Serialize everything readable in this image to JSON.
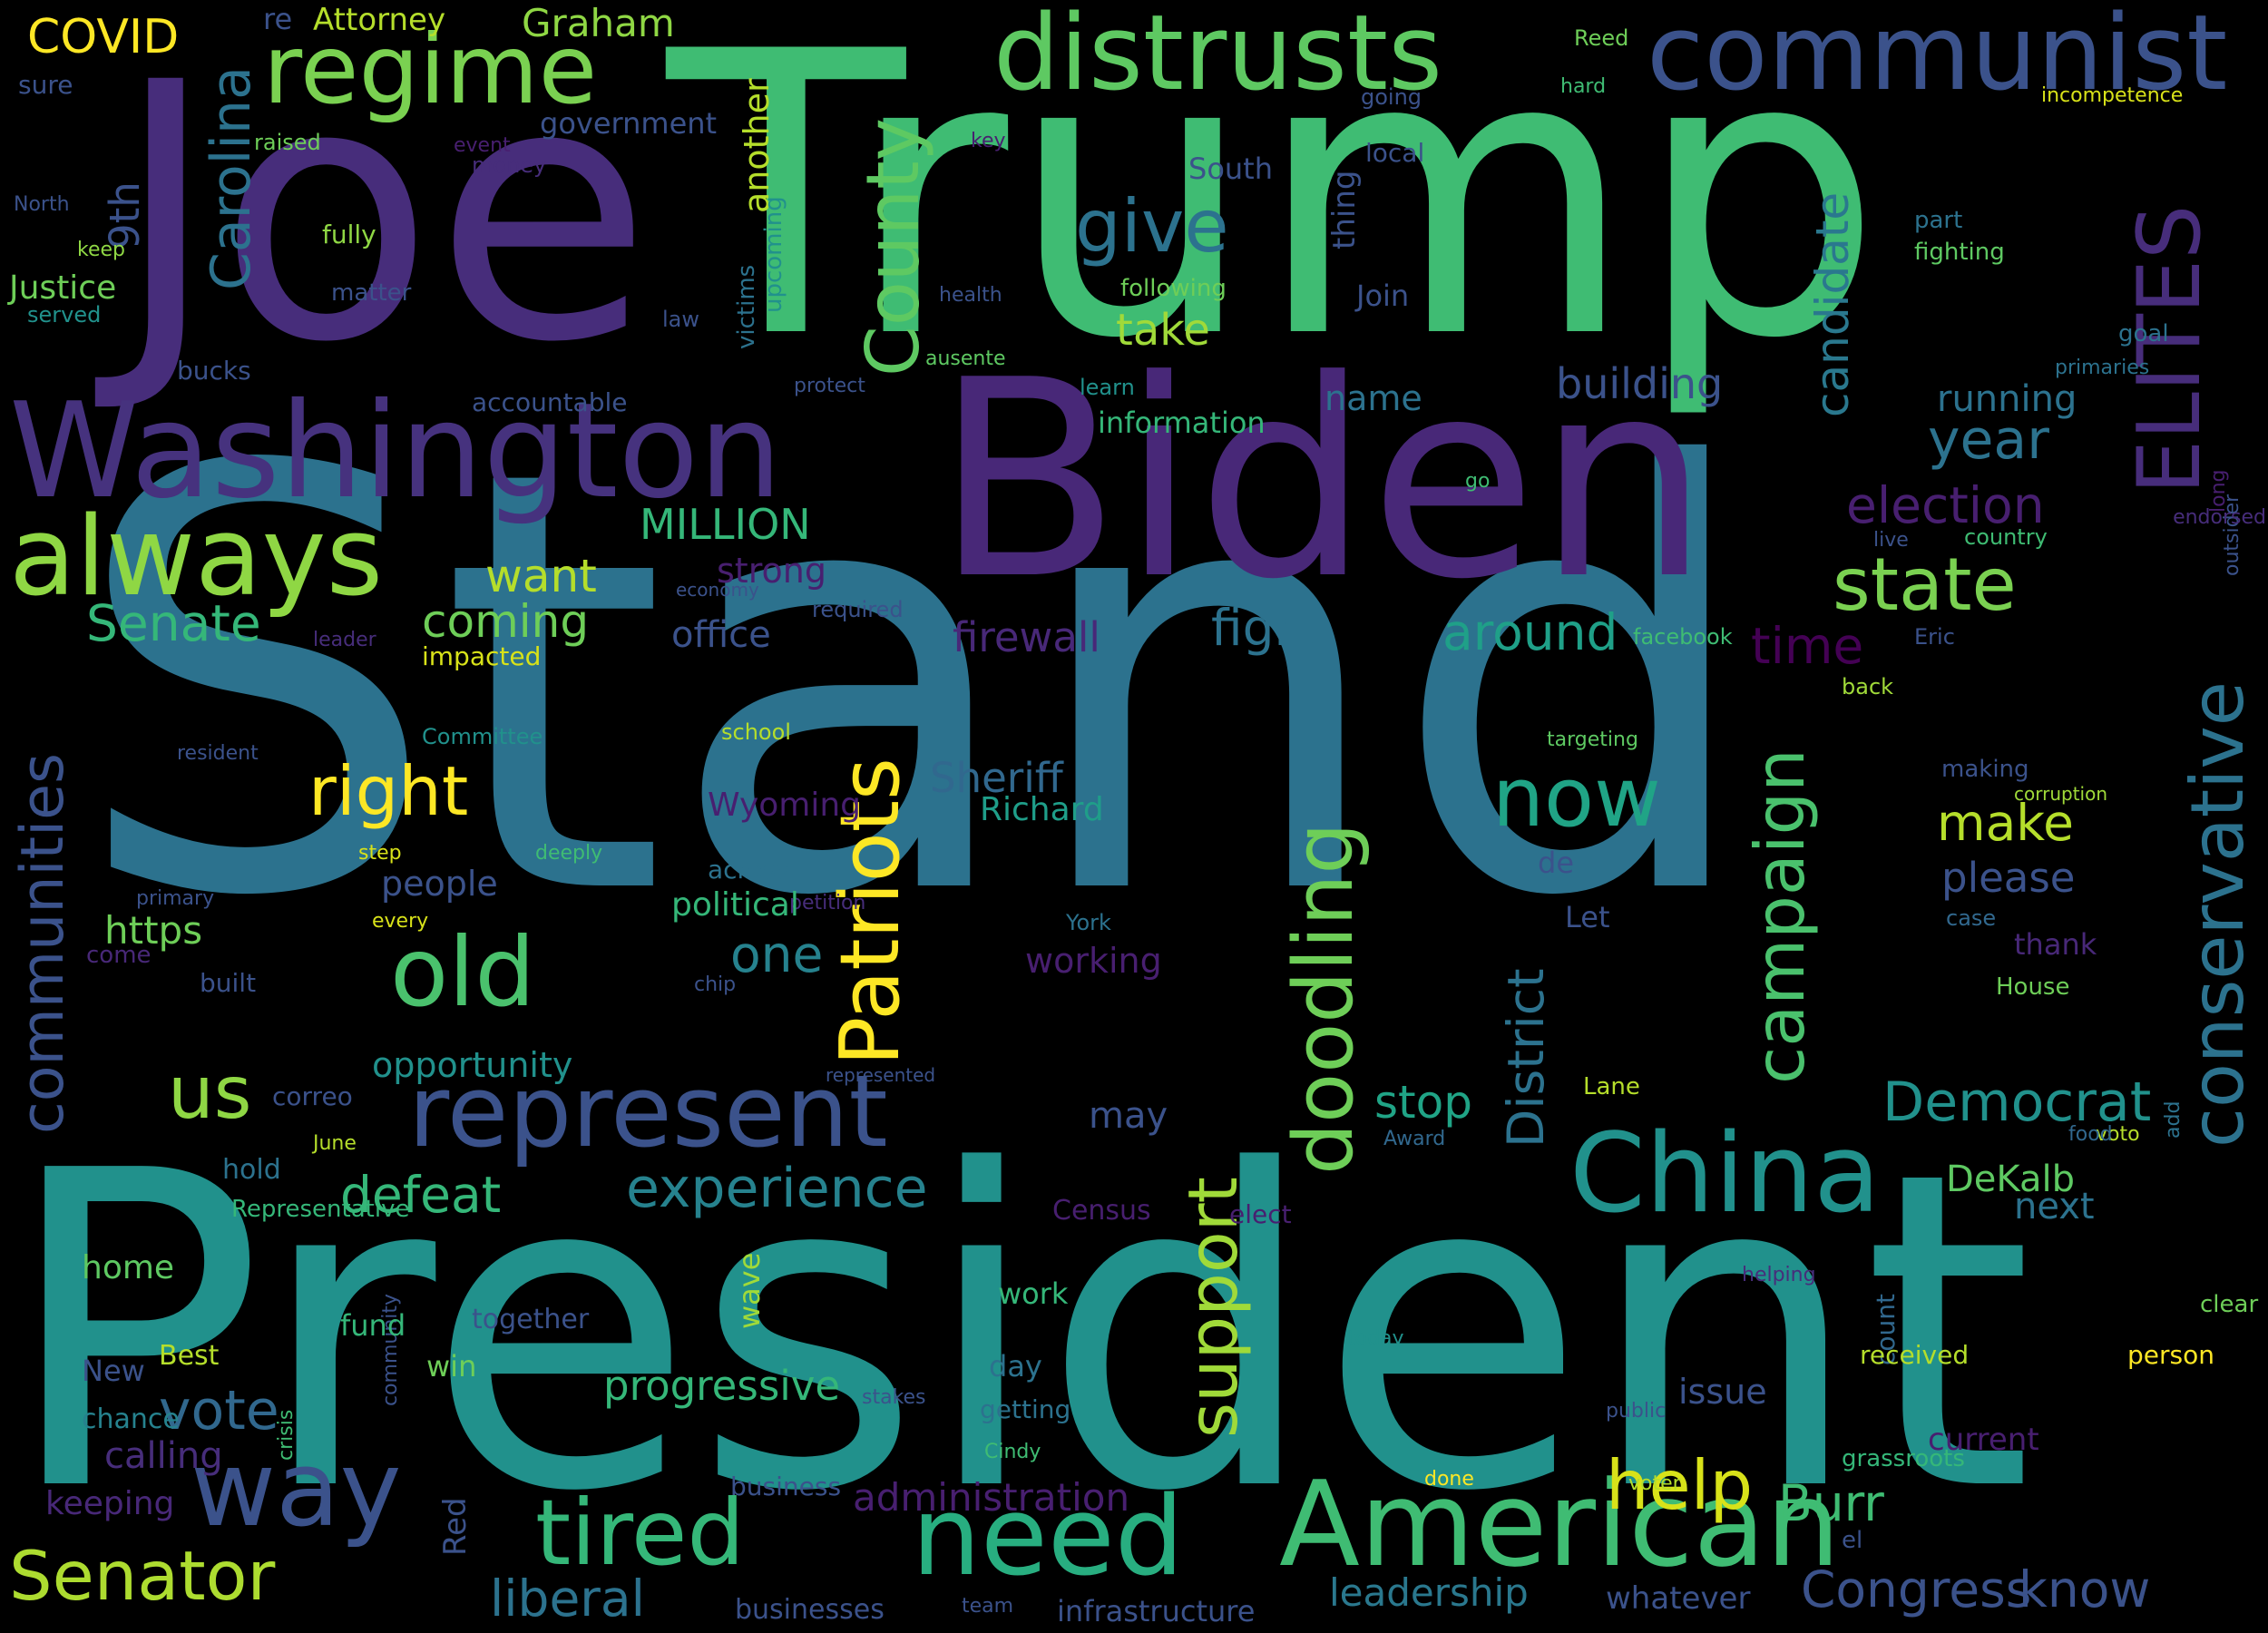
{
  "palette": {
    "background": "#000000",
    "purple_dark": "#440154",
    "purple": "#472d7b",
    "indigo": "#3b528b",
    "blue": "#2c728e",
    "teal": "#21918c",
    "green_teal": "#28ae80",
    "green": "#5ec962",
    "lime": "#addc30",
    "yellow": "#fde725"
  },
  "words": [
    {
      "text": "Stand",
      "color": "#2c728e"
    },
    {
      "text": "President",
      "color": "#21918c"
    },
    {
      "text": "Trump",
      "color": "#3fbc73"
    },
    {
      "text": "Joe",
      "color": "#472d7b"
    },
    {
      "text": "Biden",
      "color": "#482878"
    },
    {
      "text": "Washington",
      "color": "#46327e"
    },
    {
      "text": "communist",
      "color": "#3b528b"
    },
    {
      "text": "distrusts",
      "color": "#5ec962"
    },
    {
      "text": "regime",
      "color": "#7ad151"
    },
    {
      "text": "always",
      "color": "#8fd744"
    },
    {
      "text": "American",
      "color": "#3fbc73"
    },
    {
      "text": "represent",
      "color": "#3b528b"
    },
    {
      "text": "China",
      "color": "#21918c"
    },
    {
      "text": "need",
      "color": "#28ae80"
    },
    {
      "text": "way",
      "color": "#3b528b"
    },
    {
      "text": "tired",
      "color": "#35b779"
    },
    {
      "text": "old",
      "color": "#4ac16d"
    },
    {
      "text": "Patriots",
      "color": "#fde725"
    },
    {
      "text": "ELITES",
      "color": "#472d7b"
    },
    {
      "text": "County",
      "color": "#5ec962"
    },
    {
      "text": "Carolina",
      "color": "#2c728e"
    },
    {
      "text": "doodling",
      "color": "#6ece58"
    },
    {
      "text": "campaign",
      "color": "#4ac16d"
    },
    {
      "text": "conservative",
      "color": "#2c728e"
    },
    {
      "text": "support",
      "color": "#a0da39"
    },
    {
      "text": "communities",
      "color": "#3b528b"
    },
    {
      "text": "help",
      "color": "#d8e219"
    },
    {
      "text": "Senator",
      "color": "#addc30"
    },
    {
      "text": "state",
      "color": "#7ad151"
    },
    {
      "text": "now",
      "color": "#20a486"
    },
    {
      "text": "right",
      "color": "#fde725"
    },
    {
      "text": "give",
      "color": "#2c728e"
    },
    {
      "text": "us",
      "color": "#8fd744"
    },
    {
      "text": "vote",
      "color": "#31688e"
    },
    {
      "text": "Democrat",
      "color": "#21918c"
    },
    {
      "text": "Congress",
      "color": "#3b528b"
    },
    {
      "text": "know",
      "color": "#3b528b"
    },
    {
      "text": "liberal",
      "color": "#2c728e"
    },
    {
      "text": "experience",
      "color": "#26828e"
    },
    {
      "text": "District",
      "color": "#2c728e"
    },
    {
      "text": "candidate",
      "color": "#2a788e"
    },
    {
      "text": "building",
      "color": "#3b528b"
    },
    {
      "text": "election",
      "color": "#481f70"
    },
    {
      "text": "year",
      "color": "#2c728e"
    },
    {
      "text": "running",
      "color": "#2c728e"
    },
    {
      "text": "Senate",
      "color": "#35b779"
    },
    {
      "text": "want",
      "color": "#b5de2b"
    },
    {
      "text": "coming",
      "color": "#6ece58"
    },
    {
      "text": "fight",
      "color": "#2c728e"
    },
    {
      "text": "around",
      "color": "#1fa088"
    },
    {
      "text": "time",
      "color": "#440154"
    },
    {
      "text": "firewall",
      "color": "#482878"
    },
    {
      "text": "office",
      "color": "#3b528b"
    },
    {
      "text": "strong",
      "color": "#481f70"
    },
    {
      "text": "MILLION",
      "color": "#35b779"
    },
    {
      "text": "make",
      "color": "#b5de2b"
    },
    {
      "text": "please",
      "color": "#3b528b"
    },
    {
      "text": "Sheriff",
      "color": "#31688e"
    },
    {
      "text": "Richard",
      "color": "#1f9e89"
    },
    {
      "text": "Wyoming",
      "color": "#481f70"
    },
    {
      "text": "one",
      "color": "#26828e"
    },
    {
      "text": "working",
      "color": "#481f70"
    },
    {
      "text": "stop",
      "color": "#20a486"
    },
    {
      "text": "may",
      "color": "#3b528b"
    },
    {
      "text": "defeat",
      "color": "#35b779"
    },
    {
      "text": "opportunity",
      "color": "#21918c"
    },
    {
      "text": "people",
      "color": "#3b528b"
    },
    {
      "text": "https",
      "color": "#6ece58"
    },
    {
      "text": "take",
      "color": "#a0da39"
    },
    {
      "text": "name",
      "color": "#2c728e"
    },
    {
      "text": "information",
      "color": "#35b779"
    },
    {
      "text": "Burr",
      "color": "#3fbc73"
    },
    {
      "text": "DeKalb",
      "color": "#5ec962"
    },
    {
      "text": "next",
      "color": "#2c728e"
    },
    {
      "text": "progressive",
      "color": "#35b779"
    },
    {
      "text": "administration",
      "color": "#481f70"
    },
    {
      "text": "leadership",
      "color": "#2a788e"
    },
    {
      "text": "whatever",
      "color": "#3b528b"
    },
    {
      "text": "infrastructure",
      "color": "#3b528b"
    },
    {
      "text": "businesses",
      "color": "#3b528b"
    },
    {
      "text": "Graham",
      "color": "#8fd744"
    },
    {
      "text": "Attorney",
      "color": "#b5de2b"
    },
    {
      "text": "re",
      "color": "#3b528b"
    },
    {
      "text": "COVID",
      "color": "#fde725"
    },
    {
      "text": "sure",
      "color": "#3b528b"
    },
    {
      "text": "raised",
      "color": "#6ece58"
    },
    {
      "text": "9th",
      "color": "#3b528b"
    },
    {
      "text": "North",
      "color": "#3b528b"
    },
    {
      "text": "fully",
      "color": "#8fd744"
    },
    {
      "text": "keep",
      "color": "#8fd744"
    },
    {
      "text": "Justice",
      "color": "#6ece58"
    },
    {
      "text": "served",
      "color": "#21918c"
    },
    {
      "text": "matter",
      "color": "#3b528b"
    },
    {
      "text": "government",
      "color": "#3b528b"
    },
    {
      "text": "event",
      "color": "#481f70"
    },
    {
      "text": "money",
      "color": "#472d7b"
    },
    {
      "text": "bucks",
      "color": "#3b528b"
    },
    {
      "text": "another",
      "color": "#b5de2b"
    },
    {
      "text": "accountable",
      "color": "#3b528b"
    },
    {
      "text": "law",
      "color": "#3b528b"
    },
    {
      "text": "health",
      "color": "#3b528b"
    },
    {
      "text": "protect",
      "color": "#3b528b"
    },
    {
      "text": "victims",
      "color": "#2c728e"
    },
    {
      "text": "upcoming",
      "color": "#21918c"
    },
    {
      "text": "ausente",
      "color": "#5ec962"
    },
    {
      "text": "learn",
      "color": "#21918c"
    },
    {
      "text": "following",
      "color": "#6ece58"
    },
    {
      "text": "Join",
      "color": "#3b528b"
    },
    {
      "text": "South",
      "color": "#3b528b"
    },
    {
      "text": "thing",
      "color": "#3b528b"
    },
    {
      "text": "local",
      "color": "#3b528b"
    },
    {
      "text": "key",
      "color": "#481f70"
    },
    {
      "text": "going",
      "color": "#3b528b"
    },
    {
      "text": "hard",
      "color": "#3fbc73"
    },
    {
      "text": "Reed",
      "color": "#6ece58"
    },
    {
      "text": "incompetence",
      "color": "#d8e219"
    },
    {
      "text": "part",
      "color": "#2c728e"
    },
    {
      "text": "fighting",
      "color": "#5ec962"
    },
    {
      "text": "goal",
      "color": "#2c728e"
    },
    {
      "text": "primaries",
      "color": "#2c728e"
    },
    {
      "text": "go",
      "color": "#3fbc73"
    },
    {
      "text": "live",
      "color": "#3b528b"
    },
    {
      "text": "country",
      "color": "#3fbc73"
    },
    {
      "text": "endorsed",
      "color": "#472d7b"
    },
    {
      "text": "long",
      "color": "#481f70"
    },
    {
      "text": "outsider",
      "color": "#3b528b"
    },
    {
      "text": "facebook",
      "color": "#3fbc73"
    },
    {
      "text": "Eric",
      "color": "#3b528b"
    },
    {
      "text": "back",
      "color": "#a0da39"
    },
    {
      "text": "targeting",
      "color": "#5ec962"
    },
    {
      "text": "making",
      "color": "#3b528b"
    },
    {
      "text": "corruption",
      "color": "#a0da39"
    },
    {
      "text": "case",
      "color": "#31688e"
    },
    {
      "text": "thank",
      "color": "#482878"
    },
    {
      "text": "House",
      "color": "#6ece58"
    },
    {
      "text": "de",
      "color": "#3b528b"
    },
    {
      "text": "Let",
      "color": "#3b528b"
    },
    {
      "text": "York",
      "color": "#2c728e"
    },
    {
      "text": "petition",
      "color": "#472d7b"
    },
    {
      "text": "chip",
      "color": "#3b528b"
    },
    {
      "text": "political",
      "color": "#35b779"
    },
    {
      "text": "across",
      "color": "#2c728e"
    },
    {
      "text": "school",
      "color": "#b5de2b"
    },
    {
      "text": "required",
      "color": "#3b528b"
    },
    {
      "text": "economy",
      "color": "#3b528b"
    },
    {
      "text": "leader",
      "color": "#472d7b"
    },
    {
      "text": "impacted",
      "color": "#d8e219"
    },
    {
      "text": "Committee",
      "color": "#21918c"
    },
    {
      "text": "resident",
      "color": "#3b528b"
    },
    {
      "text": "step",
      "color": "#d8e219"
    },
    {
      "text": "deeply",
      "color": "#3fbc73"
    },
    {
      "text": "primary",
      "color": "#3b528b"
    },
    {
      "text": "every",
      "color": "#d8e219"
    },
    {
      "text": "come",
      "color": "#482878"
    },
    {
      "text": "built",
      "color": "#3b528b"
    },
    {
      "text": "correo",
      "color": "#3b528b"
    },
    {
      "text": "June",
      "color": "#b5de2b"
    },
    {
      "text": "hold",
      "color": "#2c728e"
    },
    {
      "text": "Representative",
      "color": "#35b779"
    },
    {
      "text": "represented",
      "color": "#3b528b"
    },
    {
      "text": "Lane",
      "color": "#b5de2b"
    },
    {
      "text": "Award",
      "color": "#31688e"
    },
    {
      "text": "Census",
      "color": "#481f70"
    },
    {
      "text": "elect",
      "color": "#481f70"
    },
    {
      "text": "voto",
      "color": "#b5de2b"
    },
    {
      "text": "food",
      "color": "#31688e"
    },
    {
      "text": "helping",
      "color": "#472d7b"
    },
    {
      "text": "add",
      "color": "#2c728e"
    },
    {
      "text": "clear",
      "color": "#6ece58"
    },
    {
      "text": "count",
      "color": "#31688e"
    },
    {
      "text": "person",
      "color": "#fde725"
    },
    {
      "text": "received",
      "color": "#b5de2b"
    },
    {
      "text": "today",
      "color": "#21918c"
    },
    {
      "text": "public",
      "color": "#3b528b"
    },
    {
      "text": "current",
      "color": "#481f70"
    },
    {
      "text": "grassroots",
      "color": "#35b779"
    },
    {
      "text": "el",
      "color": "#3b528b"
    },
    {
      "text": "done",
      "color": "#fde725"
    },
    {
      "text": "voter",
      "color": "#b5de2b"
    },
    {
      "text": "team",
      "color": "#3b528b"
    },
    {
      "text": "business",
      "color": "#3b528b"
    },
    {
      "text": "Cindy",
      "color": "#3fbc73"
    },
    {
      "text": "getting",
      "color": "#2c728e"
    },
    {
      "text": "day",
      "color": "#2c728e"
    },
    {
      "text": "work",
      "color": "#35b779"
    },
    {
      "text": "wave",
      "color": "#a0da39"
    },
    {
      "text": "issue",
      "color": "#3b528b"
    },
    {
      "text": "stakes",
      "color": "#3b528b"
    },
    {
      "text": "community",
      "color": "#3b528b"
    },
    {
      "text": "crisis",
      "color": "#3fbc73"
    },
    {
      "text": "Red",
      "color": "#3b528b"
    },
    {
      "text": "win",
      "color": "#6ece58"
    },
    {
      "text": "together",
      "color": "#3b528b"
    },
    {
      "text": "fund",
      "color": "#35b779"
    },
    {
      "text": "Best",
      "color": "#b5de2b"
    },
    {
      "text": "home",
      "color": "#5ec962"
    },
    {
      "text": "New",
      "color": "#3b528b"
    },
    {
      "text": "chance",
      "color": "#26828e"
    },
    {
      "text": "calling",
      "color": "#472d7b"
    },
    {
      "text": "keeping",
      "color": "#482878"
    }
  ]
}
